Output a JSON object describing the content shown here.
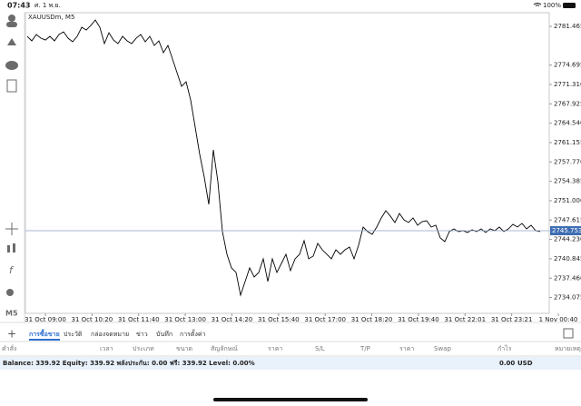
{
  "status_bar": {
    "time": "07:43",
    "date": "ศ. 1 พ.ย.",
    "battery": "100%"
  },
  "chart_data": {
    "type": "line",
    "title": "XAUUSDm, M5",
    "color": "#000000",
    "xticks": [
      "31 Oct 09:00",
      "31 Oct 10:20",
      "31 Oct 11:40",
      "31 Oct 13:00",
      "31 Oct 14:20",
      "31 Oct 15:40",
      "31 Oct 17:00",
      "31 Oct 18:20",
      "31 Oct 19:40",
      "31 Oct 22:01",
      "31 Oct 23:21",
      "1 Nov 00:40"
    ],
    "values": [
      2779.72,
      2778.93,
      2780.04,
      2779.4,
      2779.08,
      2779.72,
      2778.93,
      2780.04,
      2780.51,
      2779.4,
      2778.77,
      2779.72,
      2781.31,
      2780.83,
      2781.62,
      2782.58,
      2781.31,
      2778.45,
      2780.35,
      2779.08,
      2778.45,
      2779.72,
      2778.93,
      2778.45,
      2779.4,
      2780.04,
      2778.77,
      2779.72,
      2778.13,
      2778.93,
      2776.86,
      2778.13,
      2775.75,
      2773.37,
      2770.99,
      2771.78,
      2768.61,
      2763.85,
      2759.09,
      2755.12,
      2750.36,
      2759.88,
      2754.33,
      2745.6,
      2741.63,
      2739.25,
      2738.46,
      2734.49,
      2736.87,
      2739.25,
      2737.66,
      2738.46,
      2740.84,
      2736.87,
      2740.84,
      2738.46,
      2740.04,
      2741.63,
      2738.77,
      2740.84,
      2741.63,
      2744.01,
      2740.84,
      2741.31,
      2743.54,
      2742.42,
      2741.63,
      2740.84,
      2742.42,
      2741.63,
      2742.42,
      2742.9,
      2740.84,
      2743.22,
      2746.39,
      2745.6,
      2745.12,
      2746.39,
      2747.98,
      2749.25,
      2748.3,
      2747.19,
      2748.77,
      2747.66,
      2747.19,
      2747.98,
      2746.71,
      2747.34,
      2747.5,
      2746.39,
      2746.71,
      2744.49,
      2743.85,
      2745.6,
      2746.07,
      2745.6,
      2745.76,
      2745.44,
      2745.92,
      2745.6,
      2746.07,
      2745.44,
      2746.07,
      2745.76,
      2746.39,
      2745.6,
      2746.07,
      2746.87,
      2746.39,
      2747.03,
      2746.07,
      2746.71,
      2745.76,
      2745.6
    ],
    "ylim": [
      2731.31,
      2783.85
    ],
    "yticks": [
      2781.465,
      2774.695,
      {
        "value": 2771.31,
        "label": "2771.310"
      },
      2767.925,
      {
        "value": 2764.54,
        "label": "2764.540"
      },
      2761.155,
      {
        "value": 2757.77,
        "label": "2757.770"
      },
      2754.385,
      {
        "value": 2751,
        "label": "2751.000"
      },
      2747.615,
      {
        "value": 2744.23,
        "label": "2744.230"
      },
      2740.845,
      {
        "value": 2737.46,
        "label": "2737.460"
      },
      2734.075
    ],
    "current_price": 2745.753
  },
  "tabs": [
    "การซื้อขาย",
    "ประวัติ",
    "กล่องจดหมาย",
    "ข่าว",
    "บันทึก",
    "การตั้งค่า"
  ],
  "columns": [
    "คำสั่ง",
    "เวลา",
    "ประเภท",
    "ขนาด",
    "สัญลักษณ์",
    "ราคา",
    "S/L",
    "T/P",
    "ราคา",
    "Swap",
    "กำไร",
    "หมายเหตุ"
  ],
  "balance": {
    "summary": "Balance: 339.92 Equity: 339.92 พลังประกัน: 0.00 ฟรี: 339.92 Level: 0.00%",
    "profit": "0.00",
    "currency": "USD"
  }
}
